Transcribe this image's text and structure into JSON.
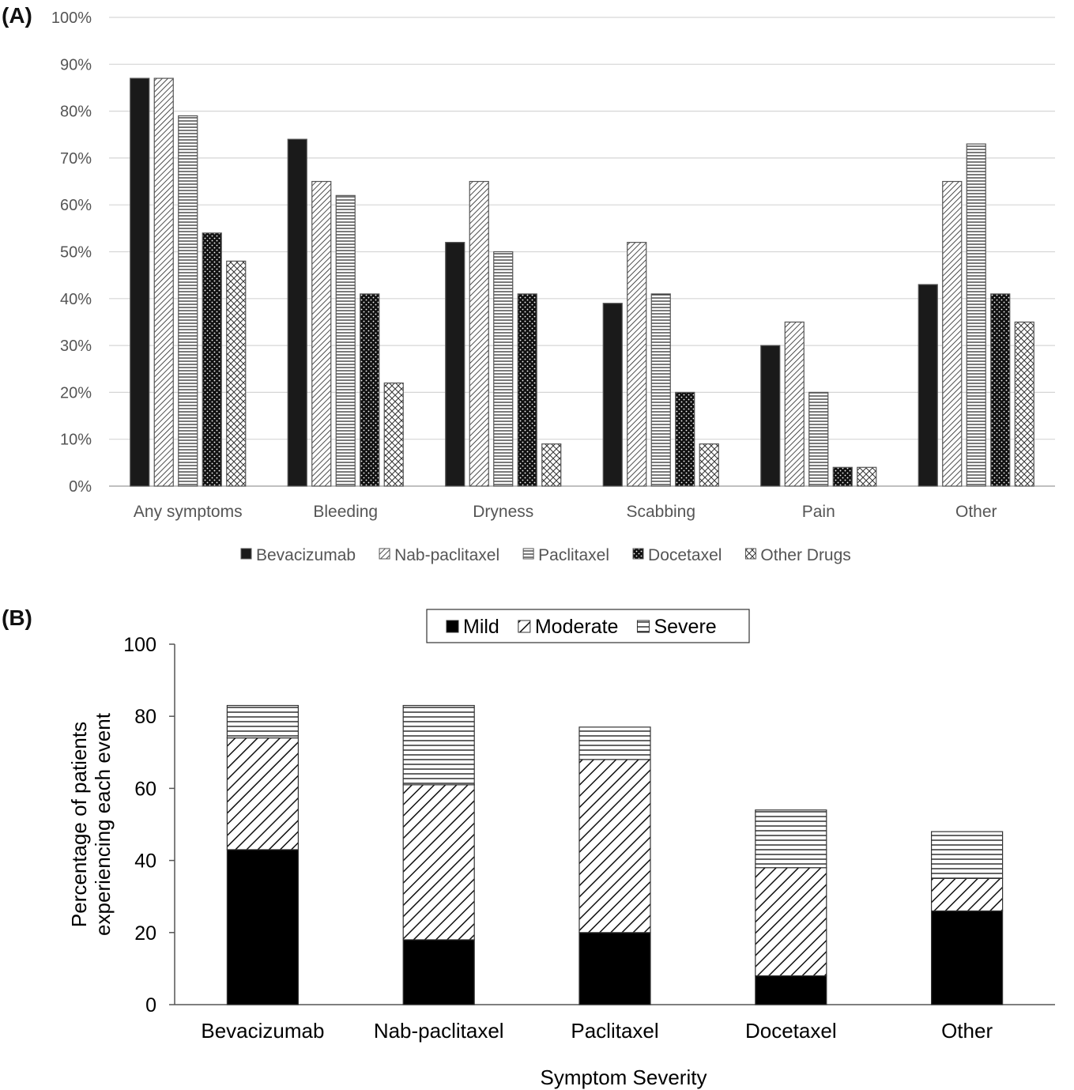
{
  "panels": {
    "a_label": "(A)",
    "b_label": "(B)"
  },
  "chart_data": [
    {
      "type": "bar",
      "panel": "A",
      "categories": [
        "Any symptoms",
        "Bleeding",
        "Dryness",
        "Scabbing",
        "Pain",
        "Other"
      ],
      "series": [
        {
          "name": "Bevacizumab",
          "pattern": "solid",
          "values": [
            87,
            74,
            52,
            39,
            30,
            43
          ]
        },
        {
          "name": "Nab-paclitaxel",
          "pattern": "diag",
          "values": [
            87,
            65,
            65,
            52,
            35,
            65
          ]
        },
        {
          "name": "Paclitaxel",
          "pattern": "hlines",
          "values": [
            79,
            62,
            50,
            41,
            20,
            73
          ]
        },
        {
          "name": "Docetaxel",
          "pattern": "dots",
          "values": [
            54,
            41,
            41,
            20,
            4,
            41
          ]
        },
        {
          "name": "Other Drugs",
          "pattern": "cross",
          "values": [
            48,
            22,
            9,
            9,
            4,
            35
          ]
        }
      ],
      "ylim": [
        0,
        100
      ],
      "y_ticks": [
        "0%",
        "10%",
        "20%",
        "30%",
        "40%",
        "50%",
        "60%",
        "70%",
        "80%",
        "90%",
        "100%"
      ],
      "grid": true,
      "legend_position": "bottom"
    },
    {
      "type": "bar",
      "stacked": true,
      "panel": "B",
      "categories": [
        "Bevacizumab",
        "Nab-paclitaxel",
        "Paclitaxel",
        "Docetaxel",
        "Other"
      ],
      "series": [
        {
          "name": "Mild",
          "pattern": "solid",
          "values": [
            43,
            18,
            20,
            8,
            26
          ]
        },
        {
          "name": "Moderate",
          "pattern": "diag",
          "values": [
            31,
            43,
            48,
            30,
            9
          ]
        },
        {
          "name": "Severe",
          "pattern": "hlines",
          "values": [
            9,
            22,
            9,
            16,
            13
          ]
        }
      ],
      "ylim": [
        0,
        100
      ],
      "y_ticks": [
        "0",
        "20",
        "40",
        "60",
        "80",
        "100"
      ],
      "ylabel_line1": "Percentage of patients",
      "ylabel_line2": "experiencing each event",
      "xlabel": "Symptom Severity",
      "grid": false,
      "legend_position": "top"
    }
  ]
}
